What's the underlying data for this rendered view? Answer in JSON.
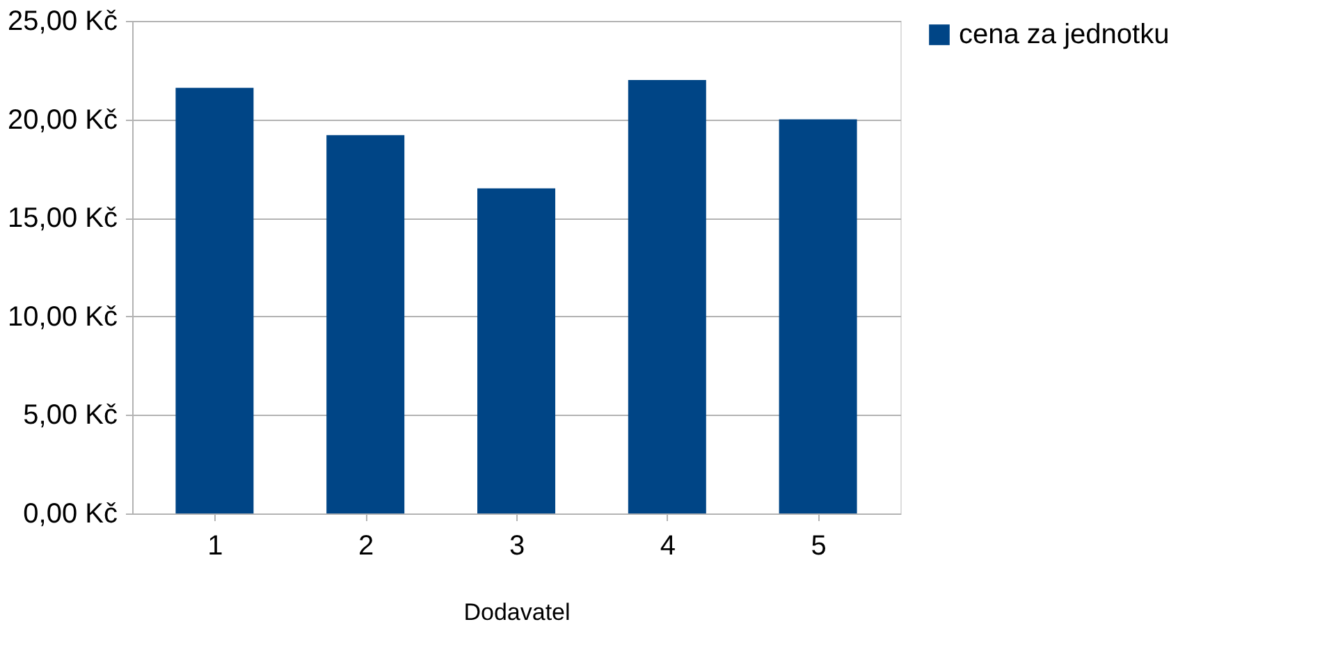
{
  "chart_data": {
    "type": "bar",
    "xlabel": "Dodavatel",
    "categories": [
      "1",
      "2",
      "3",
      "4",
      "5"
    ],
    "series": [
      {
        "name": "cena za jednotku",
        "color": "#004586",
        "values": [
          21.6,
          19.2,
          16.5,
          22.0,
          20.0
        ]
      }
    ],
    "ylim": [
      0,
      25
    ],
    "yticks": [
      {
        "value": 0,
        "label": "0,00 Kč"
      },
      {
        "value": 5,
        "label": "5,00 Kč"
      },
      {
        "value": 10,
        "label": "10,00 Kč"
      },
      {
        "value": 15,
        "label": "15,00 Kč"
      },
      {
        "value": 20,
        "label": "20,00 Kč"
      },
      {
        "value": 25,
        "label": "25,00 Kč"
      }
    ],
    "grid": "y",
    "legend": "right"
  }
}
